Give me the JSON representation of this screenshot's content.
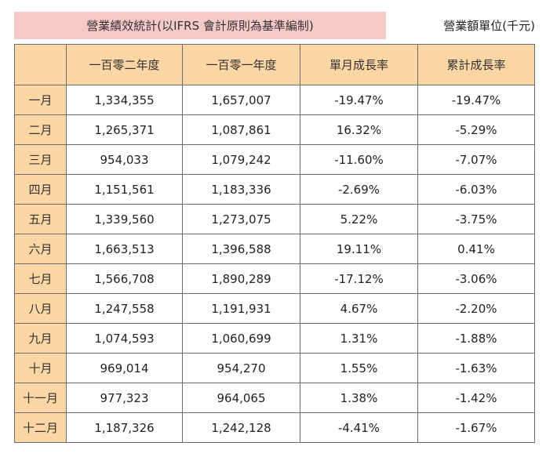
{
  "header": {
    "title": "營業績效統計(以IFRS 會計原則為基準編制)",
    "unit": "營業額單位(千元)"
  },
  "table": {
    "columns": [
      "",
      "一百零二年度",
      "一百零一年度",
      "單月成長率",
      "累計成長率"
    ],
    "rows": [
      {
        "month": "一月",
        "y102": "1,334,355",
        "y101": "1,657,007",
        "monthly": "-19.47%",
        "cumulative": "-19.47%"
      },
      {
        "month": "二月",
        "y102": "1,265,371",
        "y101": "1,087,861",
        "monthly": "16.32%",
        "cumulative": "-5.29%"
      },
      {
        "month": "三月",
        "y102": "954,033",
        "y101": "1,079,242",
        "monthly": "-11.60%",
        "cumulative": "-7.07%"
      },
      {
        "month": "四月",
        "y102": "1,151,561",
        "y101": "1,183,336",
        "monthly": "-2.69%",
        "cumulative": "-6.03%"
      },
      {
        "month": "五月",
        "y102": "1,339,560",
        "y101": "1,273,075",
        "monthly": "5.22%",
        "cumulative": "-3.75%"
      },
      {
        "month": "六月",
        "y102": "1,663,513",
        "y101": "1,396,588",
        "monthly": "19.11%",
        "cumulative": "0.41%"
      },
      {
        "month": "七月",
        "y102": "1,566,708",
        "y101": "1,890,289",
        "monthly": "-17.12%",
        "cumulative": "-3.06%"
      },
      {
        "month": "八月",
        "y102": "1,247,558",
        "y101": "1,191,931",
        "monthly": "4.67%",
        "cumulative": "-2.20%"
      },
      {
        "month": "九月",
        "y102": "1,074,593",
        "y101": "1,060,699",
        "monthly": "1.31%",
        "cumulative": "-1.88%"
      },
      {
        "month": "十月",
        "y102": "969,014",
        "y101": "954,270",
        "monthly": "1.55%",
        "cumulative": "-1.63%"
      },
      {
        "month": "十一月",
        "y102": "977,323",
        "y101": "964,065",
        "monthly": "1.38%",
        "cumulative": "-1.42%"
      },
      {
        "month": "十二月",
        "y102": "1,187,326",
        "y101": "1,242,128",
        "monthly": "-4.41%",
        "cumulative": "-1.67%"
      }
    ]
  },
  "colors": {
    "title_bg": "#f7c9c9",
    "header_bg": "#fcd7a5",
    "border": "#6d6d6d"
  }
}
